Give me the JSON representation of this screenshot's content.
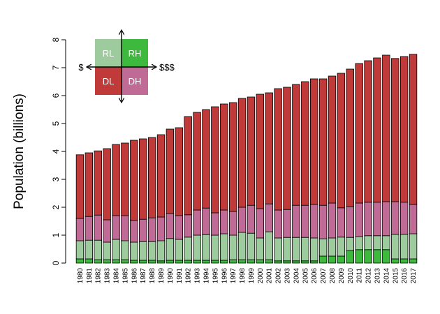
{
  "chart_data": {
    "type": "bar",
    "stacked": true,
    "ylabel": "Population (billions)",
    "ylim": [
      0,
      8
    ],
    "y_ticks": [
      0,
      1,
      2,
      3,
      4,
      5,
      6,
      7,
      8
    ],
    "grid": false,
    "categories": [
      "1980",
      "1981",
      "1982",
      "1983",
      "1984",
      "1985",
      "1986",
      "1987",
      "1988",
      "1989",
      "1990",
      "1991",
      "1992",
      "1993",
      "1994",
      "1995",
      "1996",
      "1997",
      "1998",
      "1999",
      "2000",
      "2001",
      "2002",
      "2003",
      "2004",
      "2005",
      "2006",
      "2007",
      "2008",
      "2009",
      "2010",
      "2011",
      "2012",
      "2013",
      "2014",
      "2015",
      "2016",
      "2017"
    ],
    "series": [
      {
        "key": "RH",
        "color": "#3dba3d",
        "values": [
          0.15,
          0.15,
          0.12,
          0.12,
          0.12,
          0.12,
          0.1,
          0.1,
          0.1,
          0.08,
          0.1,
          0.1,
          0.1,
          0.1,
          0.1,
          0.1,
          0.1,
          0.12,
          0.12,
          0.12,
          0.12,
          0.12,
          0.08,
          0.08,
          0.08,
          0.08,
          0.08,
          0.25,
          0.25,
          0.25,
          0.45,
          0.48,
          0.48,
          0.48,
          0.48,
          0.15,
          0.15,
          0.15
        ]
      },
      {
        "key": "RL",
        "color": "#9dcb9d",
        "values": [
          0.65,
          0.67,
          0.7,
          0.63,
          0.73,
          0.68,
          0.65,
          0.67,
          0.67,
          0.72,
          0.78,
          0.75,
          0.83,
          0.9,
          0.92,
          0.9,
          0.95,
          0.88,
          0.98,
          0.95,
          0.78,
          1.0,
          0.82,
          0.84,
          0.84,
          0.84,
          0.82,
          0.62,
          0.65,
          0.68,
          0.47,
          0.47,
          0.5,
          0.5,
          0.5,
          0.88,
          0.88,
          0.9
        ]
      },
      {
        "key": "DH",
        "color": "#c06a96",
        "values": [
          0.8,
          0.85,
          0.9,
          0.8,
          0.85,
          0.9,
          0.78,
          0.8,
          0.85,
          0.85,
          0.9,
          0.85,
          0.8,
          0.9,
          0.95,
          0.8,
          0.85,
          0.85,
          0.9,
          1.0,
          1.05,
          1.0,
          1.0,
          1.0,
          1.15,
          1.15,
          1.2,
          1.2,
          1.25,
          1.05,
          1.1,
          1.2,
          1.2,
          1.2,
          1.22,
          1.17,
          1.15,
          1.05
        ]
      },
      {
        "key": "DL",
        "color": "#c03a3a",
        "values": [
          2.28,
          2.28,
          2.3,
          2.55,
          2.55,
          2.6,
          2.87,
          2.88,
          2.88,
          2.95,
          3.02,
          3.15,
          3.52,
          3.5,
          3.53,
          3.8,
          3.8,
          3.9,
          3.9,
          3.88,
          4.1,
          3.98,
          4.35,
          4.38,
          4.33,
          4.43,
          4.5,
          4.53,
          4.55,
          4.82,
          4.93,
          5.0,
          5.07,
          5.17,
          5.25,
          5.13,
          5.22,
          5.38
        ]
      }
    ],
    "legend": {
      "placement": "top-left",
      "cells": [
        {
          "key": "RL",
          "label": "RL",
          "color": "#9dcb9d"
        },
        {
          "key": "RH",
          "label": "RH",
          "color": "#3dba3d"
        },
        {
          "key": "DL",
          "label": "DL",
          "color": "#c03a3a"
        },
        {
          "key": "DH",
          "label": "DH",
          "color": "#c06a96"
        }
      ],
      "left_label": "$",
      "right_label": "$$$"
    }
  }
}
